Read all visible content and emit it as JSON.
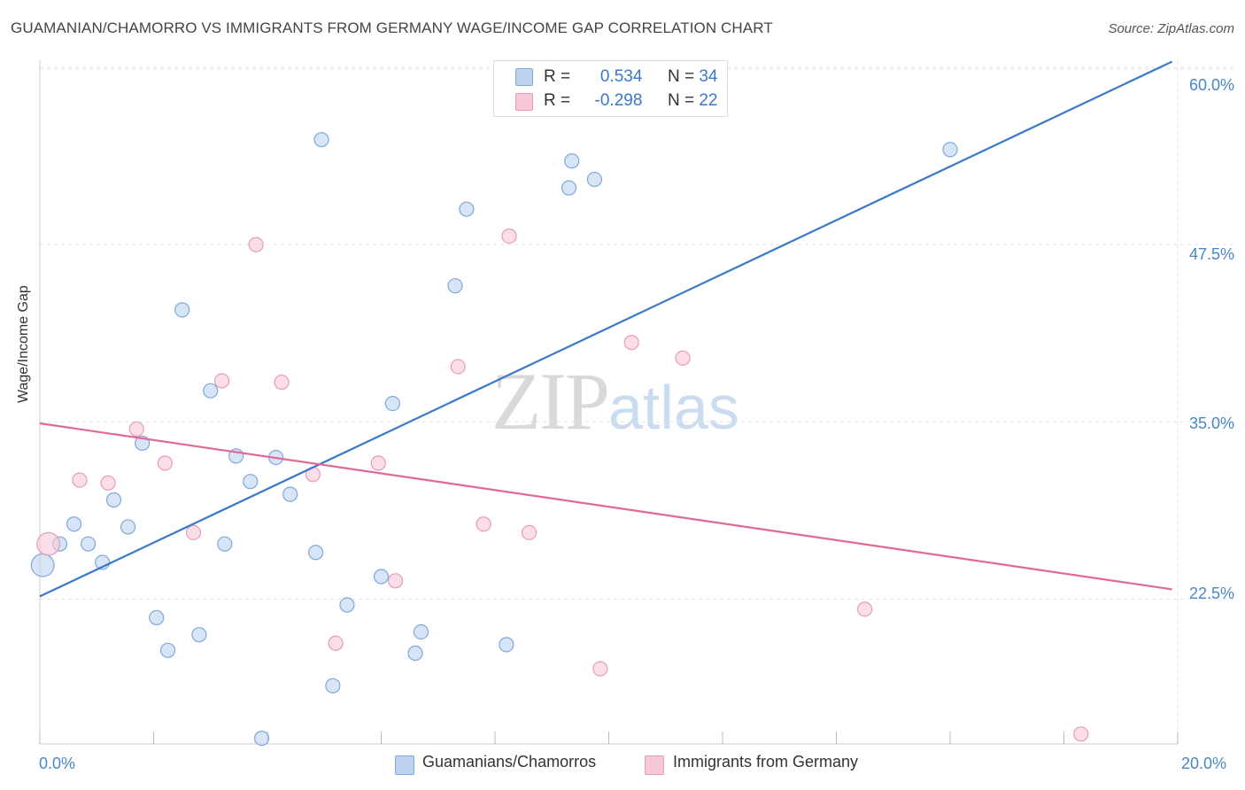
{
  "title": "GUAMANIAN/CHAMORRO VS IMMIGRANTS FROM GERMANY WAGE/INCOME GAP CORRELATION CHART",
  "source": "Source: ZipAtlas.com",
  "watermark": {
    "part1": "ZIP",
    "part2": "atlas"
  },
  "colors": {
    "blue": "#3a78c9",
    "blue_fill": "#bcd3f0",
    "pink": "#e0699a",
    "pink_fill": "#f8c8d8",
    "grid": "#e5e5e5"
  },
  "stats": {
    "rows": [
      {
        "r_label": "R =",
        "r_value": "0.534",
        "n_label": "N =",
        "n_value": "34",
        "color": "#bcd3f0",
        "stroke": "#7da8dc"
      },
      {
        "r_label": "R =",
        "r_value": "-0.298",
        "n_label": "N =",
        "n_value": "22",
        "color": "#f8c8d8",
        "stroke": "#e69bb8"
      }
    ]
  },
  "legend": [
    {
      "label": "Guamanians/Chamorros",
      "color": "#bcd3f0",
      "stroke": "#7da8dc"
    },
    {
      "label": "Immigrants from Germany",
      "color": "#f8c8d8",
      "stroke": "#e69bb8"
    }
  ],
  "chart_data": {
    "type": "scatter",
    "title": "GUAMANIAN/CHAMORRO VS IMMIGRANTS FROM GERMANY WAGE/INCOME GAP CORRELATION CHART",
    "xlabel": "",
    "ylabel": "Wage/Income Gap",
    "xlim": [
      0,
      20
    ],
    "ylim": [
      12.3,
      60.5
    ],
    "x_tick_labels": [
      "0.0%",
      "20.0%"
    ],
    "y_ticks": [
      22.5,
      35.0,
      47.5,
      60.0
    ],
    "y_tick_labels": [
      "22.5%",
      "35.0%",
      "47.5%",
      "60.0%"
    ],
    "series": [
      {
        "name": "Guamanians/Chamorros",
        "color": "#3a78c9",
        "points": [
          [
            0.05,
            24.9,
            1.6
          ],
          [
            0.35,
            26.4,
            1
          ],
          [
            0.6,
            27.8,
            1
          ],
          [
            0.85,
            26.4,
            1
          ],
          [
            1.1,
            25.1,
            1
          ],
          [
            1.3,
            29.5,
            1
          ],
          [
            1.55,
            27.6,
            1
          ],
          [
            1.8,
            33.5,
            1
          ],
          [
            2.05,
            21.2,
            1
          ],
          [
            2.25,
            18.9,
            1
          ],
          [
            2.5,
            42.9,
            1
          ],
          [
            2.8,
            20.0,
            1
          ],
          [
            3.0,
            37.2,
            1
          ],
          [
            3.25,
            26.4,
            1
          ],
          [
            3.45,
            32.6,
            1
          ],
          [
            3.7,
            30.8,
            1
          ],
          [
            3.9,
            12.7,
            1
          ],
          [
            4.15,
            32.5,
            1
          ],
          [
            4.4,
            29.9,
            1
          ],
          [
            4.85,
            25.8,
            1
          ],
          [
            4.95,
            54.9,
            1
          ],
          [
            5.15,
            16.4,
            1
          ],
          [
            5.4,
            22.1,
            1
          ],
          [
            6.0,
            24.1,
            1
          ],
          [
            6.2,
            36.3,
            1
          ],
          [
            6.6,
            18.7,
            1
          ],
          [
            6.7,
            20.2,
            1
          ],
          [
            7.3,
            44.6,
            1
          ],
          [
            7.5,
            50.0,
            1
          ],
          [
            8.2,
            19.3,
            1
          ],
          [
            9.3,
            51.5,
            1
          ],
          [
            9.35,
            53.4,
            1
          ],
          [
            9.75,
            52.1,
            1
          ],
          [
            16.0,
            54.2,
            1
          ]
        ],
        "trend": {
          "x": [
            0,
            19.9
          ],
          "y": [
            22.7,
            60.4
          ]
        }
      },
      {
        "name": "Immigrants from Germany",
        "color": "#e0699a",
        "points": [
          [
            0.15,
            26.4,
            1.6
          ],
          [
            0.7,
            30.9,
            1
          ],
          [
            1.2,
            30.7,
            1
          ],
          [
            1.7,
            34.5,
            1
          ],
          [
            2.2,
            32.1,
            1
          ],
          [
            2.7,
            27.2,
            1
          ],
          [
            3.2,
            37.9,
            1
          ],
          [
            3.8,
            47.5,
            1
          ],
          [
            4.25,
            37.8,
            1
          ],
          [
            4.8,
            31.3,
            1
          ],
          [
            5.2,
            19.4,
            1
          ],
          [
            5.95,
            32.1,
            1
          ],
          [
            6.25,
            23.8,
            1
          ],
          [
            7.35,
            38.9,
            1
          ],
          [
            7.8,
            27.8,
            1
          ],
          [
            8.25,
            48.1,
            1
          ],
          [
            8.6,
            27.2,
            1
          ],
          [
            9.85,
            17.6,
            1
          ],
          [
            10.4,
            40.6,
            1
          ],
          [
            11.3,
            39.5,
            1
          ],
          [
            14.5,
            21.8,
            1
          ],
          [
            18.3,
            13.0,
            1
          ]
        ],
        "trend": {
          "x": [
            0,
            19.9
          ],
          "y": [
            34.9,
            23.2
          ]
        }
      }
    ]
  }
}
